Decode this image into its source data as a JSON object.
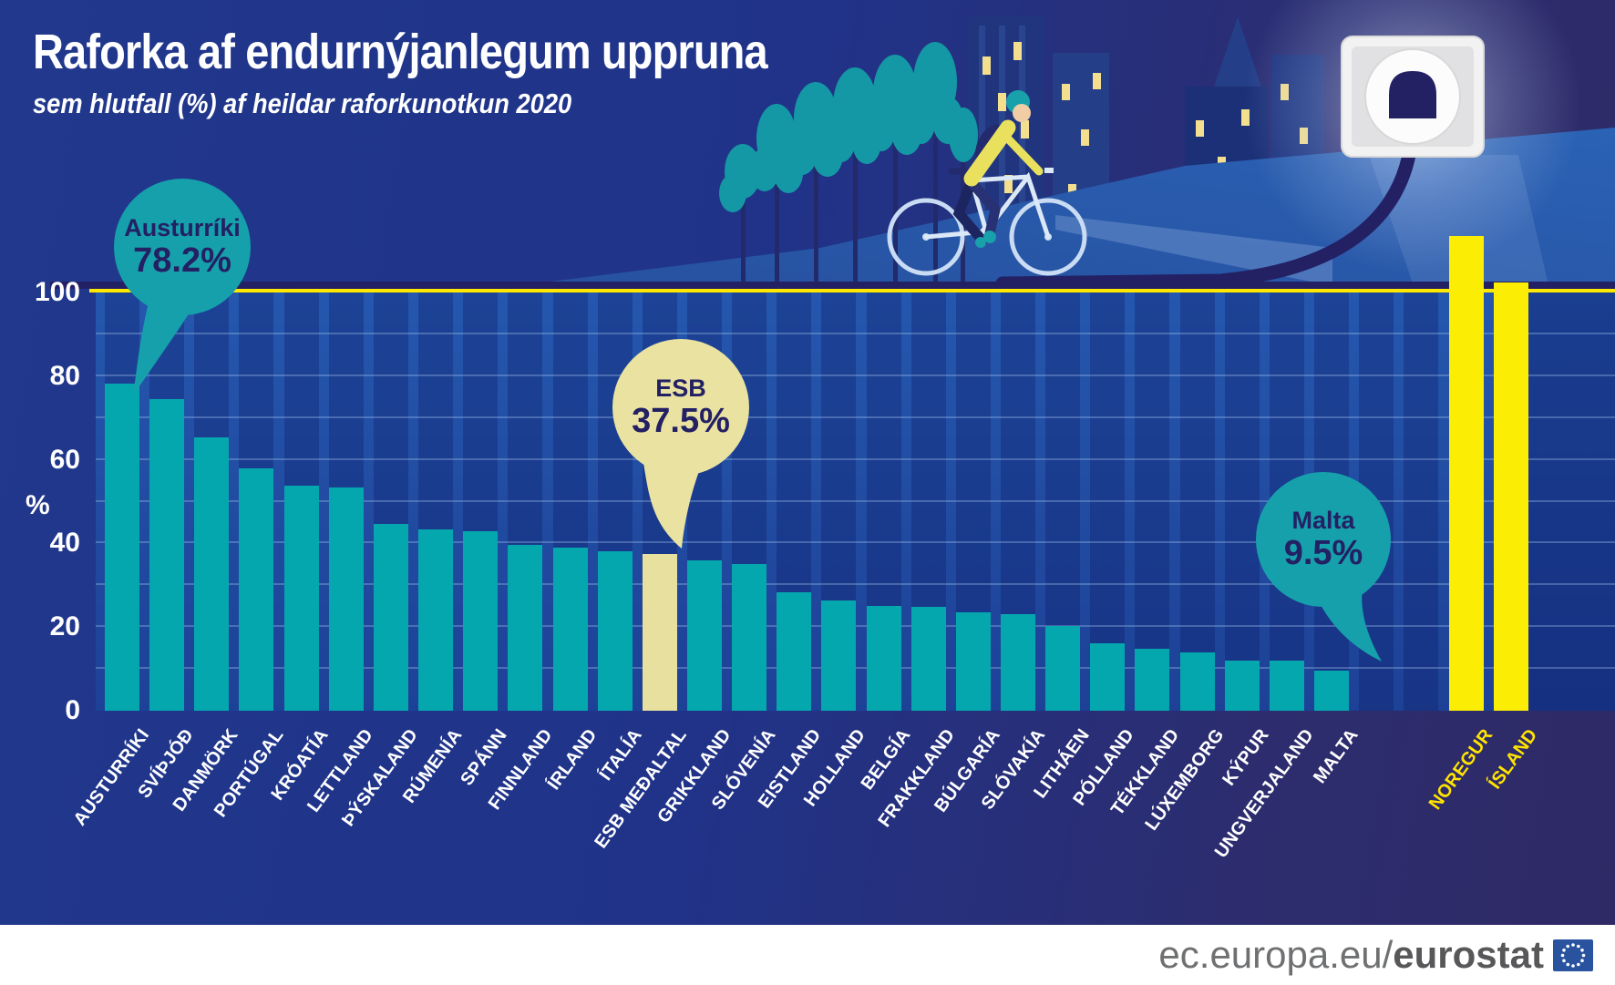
{
  "header": {
    "title": "Raforka af endurnýjanlegum uppruna",
    "subtitle": "sem hlutfall (%) af heildar raforkunotkun 2020"
  },
  "callouts": [
    {
      "id": "austria",
      "label": "Austurríki",
      "value": "78.2%"
    },
    {
      "id": "eu-average",
      "label": "ESB",
      "value": "37.5%"
    },
    {
      "id": "malta",
      "label": "Malta",
      "value": "9.5%"
    }
  ],
  "y_axis": {
    "unit_label": "%",
    "ticks": [
      0,
      20,
      40,
      60,
      80,
      100
    ]
  },
  "footer": {
    "url_prefix": "ec.europa.eu/",
    "brand": "eurostat",
    "logo": "eu-flag-icon"
  },
  "decor": {
    "illustrations": [
      "city-skyline",
      "trees",
      "cyclist",
      "headlight-beam",
      "hill",
      "power-socket",
      "power-cord"
    ]
  },
  "colors": {
    "background_navy": "#203389",
    "sky_indigo": "#2e2a66",
    "plot_blue": "#2254aa",
    "bar_teal": "#05a7af",
    "bar_eu_cream": "#e8e09e",
    "bar_noneu_yellow": "#fced04",
    "hundred_line_yellow": "#ffe800",
    "bubble_text_navy": "#232064",
    "cord_navy": "#232064",
    "footer_gray": "#6f7072",
    "eu_flag_blue": "#29539f"
  },
  "chart_data": {
    "type": "bar",
    "title": "Raforka af endurnýjanlegum uppruna",
    "subtitle": "sem hlutfall (%) af heildar raforkunotkun 2020",
    "xlabel": "",
    "ylabel": "%",
    "ylim": [
      0,
      100
    ],
    "grid_step": 10,
    "legend_position": "none",
    "categories": [
      "AUSTURRÍKI",
      "SVÍÞJÓÐ",
      "DANMÖRK",
      "PORTÚGAL",
      "KRÓATÍA",
      "LETTLAND",
      "ÞÝSKALAND",
      "RÚMENÍA",
      "SPÁNN",
      "FINNLAND",
      "ÍRLAND",
      "ÍTALÍA",
      "ESB MEÐALTAL",
      "GRIKKLAND",
      "SLÓVENÍA",
      "EISTLAND",
      "HOLLAND",
      "BELGÍA",
      "FRAKKLAND",
      "BÚLGARÍA",
      "SLÓVAKÍA",
      "LITHÁEN",
      "PÓLLAND",
      "TÉKKLAND",
      "LÚXEMBORG",
      "KÝPUR",
      "UNGVERJALAND",
      "MALTA",
      "NOREGUR",
      "ÍSLAND"
    ],
    "values": [
      78.2,
      74.5,
      65.3,
      58.0,
      53.8,
      53.4,
      44.7,
      43.4,
      42.9,
      39.6,
      39.1,
      38.1,
      37.5,
      35.9,
      35.1,
      28.3,
      26.4,
      25.1,
      24.8,
      23.6,
      23.1,
      20.2,
      16.2,
      14.8,
      13.9,
      12.0,
      11.9,
      9.5,
      113.4,
      102.4
    ],
    "eu_average_index": 12,
    "non_eu_indices": [
      28,
      29
    ],
    "bar_colors": {
      "default": "#05a7af",
      "eu_average": "#e8e09e",
      "non_eu": "#fced04"
    }
  }
}
